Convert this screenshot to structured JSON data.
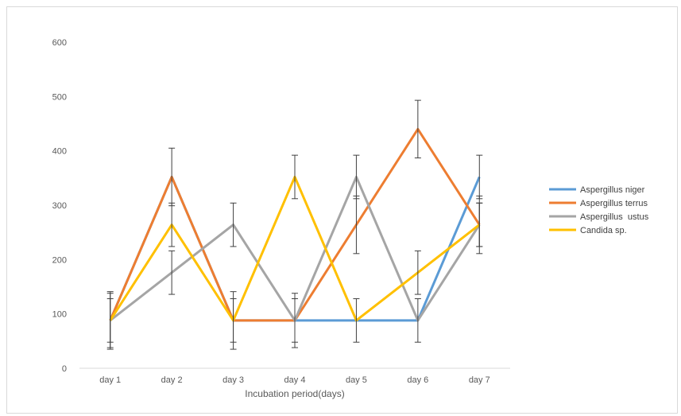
{
  "chart_data": {
    "type": "line",
    "title": "",
    "xlabel": "Incubation period(days)",
    "ylabel": "",
    "categories": [
      "day 1",
      "day 2",
      "day 3",
      "day 4",
      "day 5",
      "day 6",
      "day 7"
    ],
    "ylim": [
      0,
      600
    ],
    "yticks": [
      0,
      100,
      200,
      300,
      400,
      500,
      600
    ],
    "grid": false,
    "legend_position": "right",
    "series": [
      {
        "name": "Aspergillus niger",
        "color": "#5B9BD5",
        "values": [
          88,
          352,
          88,
          88,
          88,
          88,
          352
        ],
        "error": [
          0,
          0,
          0,
          0,
          0,
          0,
          40
        ]
      },
      {
        "name": "Aspergillus terrus",
        "color": "#ED7D31",
        "values": [
          88,
          352,
          88,
          88,
          264,
          440,
          264
        ],
        "error": [
          50,
          53,
          40,
          50,
          53,
          53,
          53
        ]
      },
      {
        "name": "Aspergillus  ustus",
        "color": "#A5A5A5",
        "values": [
          88,
          176,
          264,
          88,
          352,
          88,
          264
        ],
        "error": [
          40,
          40,
          40,
          40,
          40,
          40,
          40
        ]
      },
      {
        "name": "Candida sp.",
        "color": "#FFC000",
        "values": [
          88,
          264,
          88,
          352,
          88,
          176,
          264
        ],
        "error": [
          53,
          40,
          53,
          40,
          40,
          40,
          40
        ]
      }
    ]
  }
}
